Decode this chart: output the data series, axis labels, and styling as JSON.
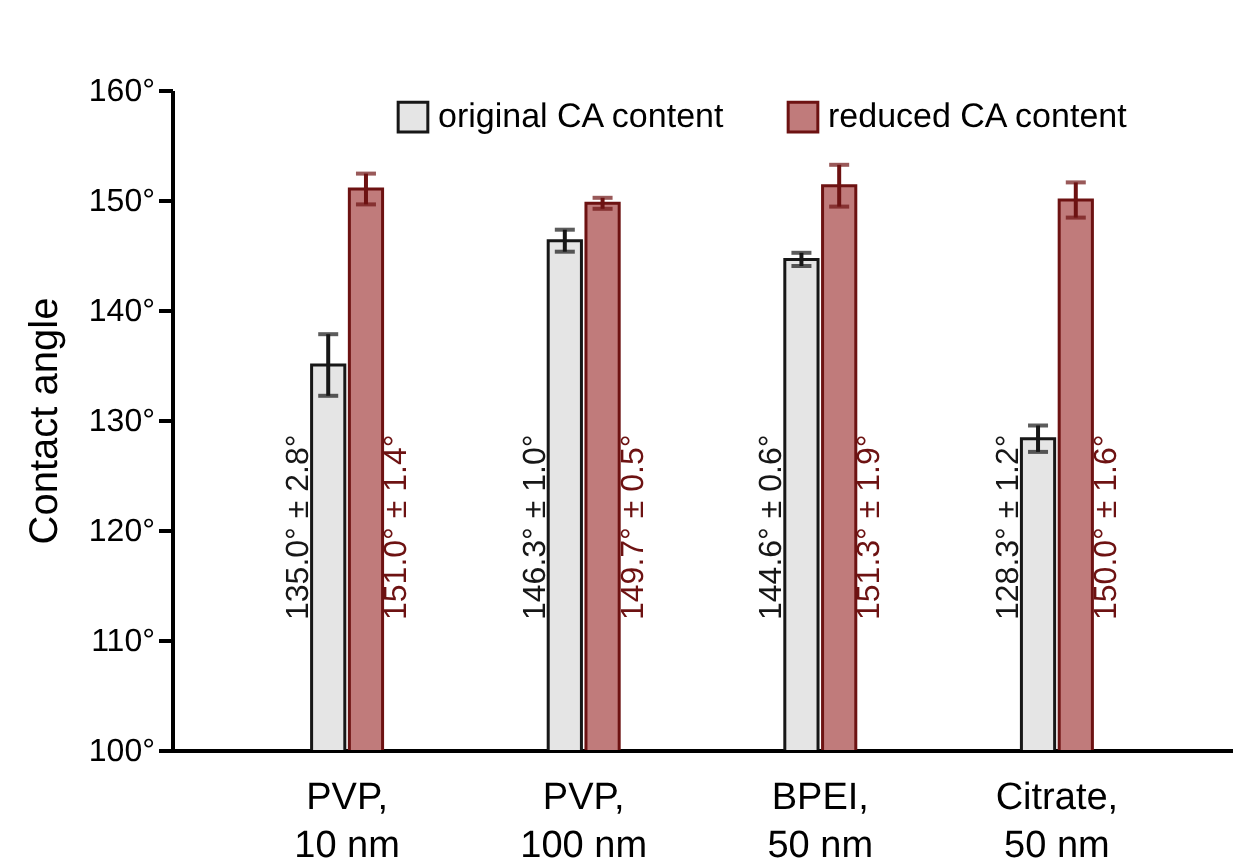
{
  "chart_data": {
    "type": "bar",
    "ylabel": "Contact angle",
    "categories": [
      "PVP,\n10 nm",
      "PVP,\n100 nm",
      "BPEI,\n50 nm",
      "Citrate,\n50 nm"
    ],
    "series": [
      {
        "name": "original CA content",
        "color": "#e5e5e5",
        "values": [
          135.0,
          146.3,
          144.6,
          128.3
        ],
        "errors": [
          2.8,
          1.0,
          0.6,
          1.2
        ],
        "value_labels": [
          "135.0° ± 2.8°",
          "146.3° ± 1.0°",
          "144.6° ± 0.6°",
          "128.3° ± 1.2°"
        ]
      },
      {
        "name": "reduced CA content",
        "color": "#c07b7b",
        "values": [
          151.0,
          149.7,
          151.3,
          150.0
        ],
        "errors": [
          1.4,
          0.5,
          1.9,
          1.6
        ],
        "value_labels": [
          "151.0° ± 1.4°",
          "149.7° ± 0.5°",
          "151.3° ± 1.9°",
          "150.0° ± 1.6°"
        ]
      }
    ],
    "ylim": [
      100,
      160
    ],
    "yticks": [
      {
        "value": 100,
        "label": "100°"
      },
      {
        "value": 110,
        "label": "110°"
      },
      {
        "value": 120,
        "label": "120°"
      },
      {
        "value": 130,
        "label": "130°"
      },
      {
        "value": 140,
        "label": "140°"
      },
      {
        "value": 150,
        "label": "150°"
      },
      {
        "value": 160,
        "label": "160°"
      }
    ],
    "legend": "top",
    "grid": false
  }
}
